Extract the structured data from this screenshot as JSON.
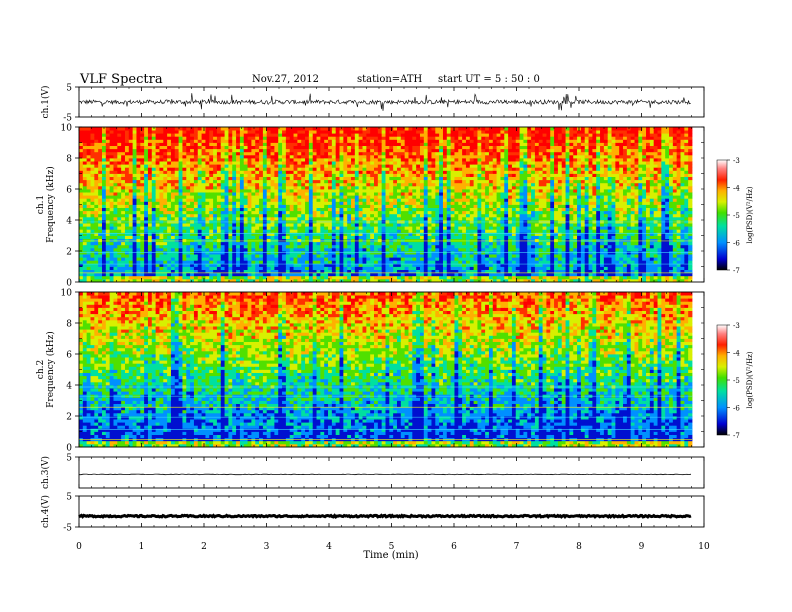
{
  "header": {
    "title": "VLF  Spectra",
    "date": "Nov.27, 2012",
    "station": "station=ATH",
    "start": "start  UT  =   5  : 50 : 0"
  },
  "chart_data": [
    {
      "type": "line",
      "panel": "ch1-waveform",
      "ylabel": "ch.1(V)",
      "xlim": [
        0,
        10
      ],
      "ylim": [
        -5,
        5
      ],
      "yticks": [
        "5",
        "-5"
      ],
      "data_end_min": 9.8,
      "signal": "noisy waveform, baseline approx 0 V, spikes up to about ±3 V"
    },
    {
      "type": "heatmap",
      "panel": "ch1-spectrogram",
      "ylabel": "ch.1\nFrequency  (kHz)",
      "xlim": [
        0,
        10
      ],
      "ylim": [
        0,
        10
      ],
      "yticks": [
        "0",
        "2",
        "4",
        "6",
        "8",
        "10"
      ],
      "colorbar": {
        "label": "log(PSD)(V²/Hz)",
        "range": [
          -7,
          -3
        ],
        "ticks": [
          "-3",
          "-4",
          "-5",
          "-6",
          "-7"
        ]
      }
    },
    {
      "type": "heatmap",
      "panel": "ch2-spectrogram",
      "ylabel": "ch.2\nFrequency  (kHz)",
      "xlim": [
        0,
        10
      ],
      "ylim": [
        0,
        10
      ],
      "yticks": [
        "0",
        "2",
        "4",
        "6",
        "8",
        "10"
      ],
      "colorbar": {
        "label": "log(PSD)(V²/Hz)",
        "range": [
          -7,
          -3
        ],
        "ticks": [
          "-3",
          "-4",
          "-5",
          "-6",
          "-7"
        ]
      }
    },
    {
      "type": "line",
      "panel": "ch3-waveform",
      "ylabel": "ch.3(V)",
      "xlim": [
        0,
        10
      ],
      "ylim": [
        -5,
        5
      ],
      "yticks": [
        "5"
      ],
      "signal": "flat line near 0 V"
    },
    {
      "type": "line",
      "panel": "ch4-waveform",
      "ylabel": "ch.4(V)",
      "xlim": [
        0,
        10
      ],
      "ylim": [
        -5,
        5
      ],
      "yticks": [
        "5",
        "-5"
      ],
      "signal": "thick flat line near 0 V"
    }
  ],
  "x_axis": {
    "label": "Time  (min)",
    "ticks": [
      "0",
      "1",
      "2",
      "3",
      "4",
      "5",
      "6",
      "7",
      "8",
      "9",
      "10"
    ]
  }
}
